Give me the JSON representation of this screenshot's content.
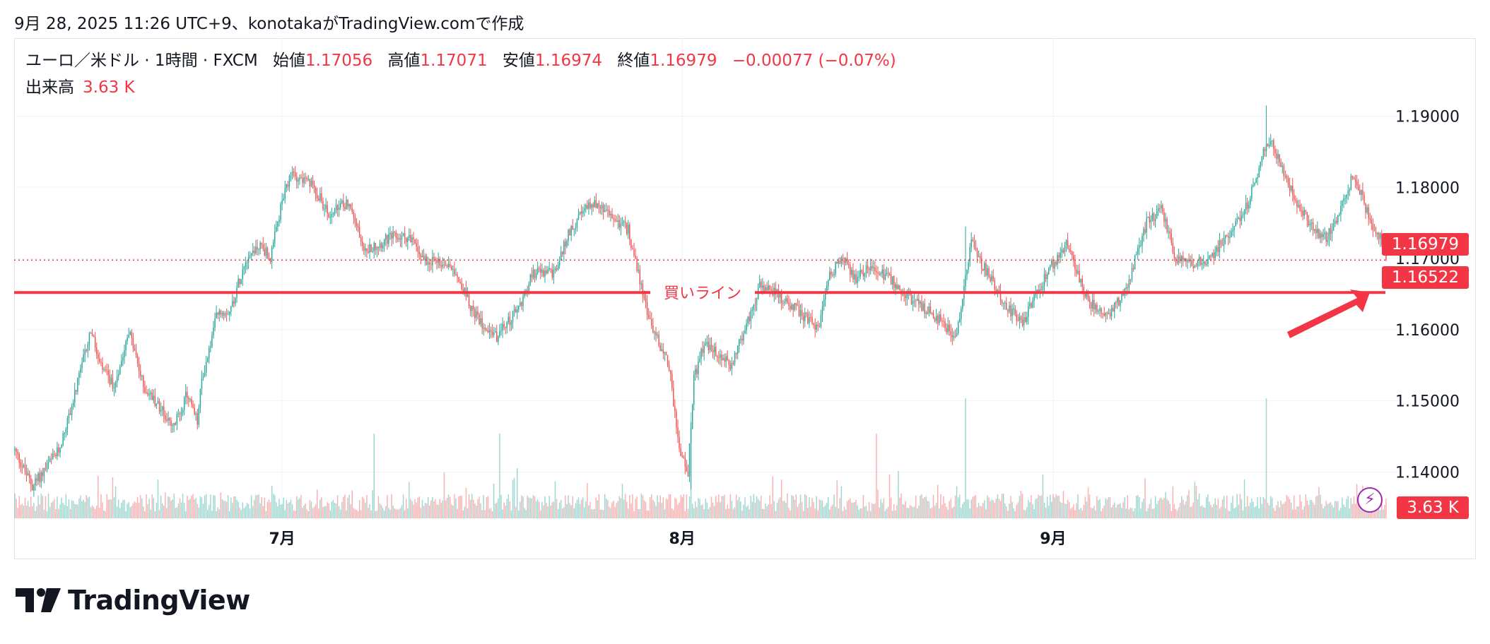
{
  "caption": "9月 28, 2025 11:26 UTC+9、konotakaがTradingView.comで作成",
  "legend": {
    "symbol": "ユーロ／米ドル · 1時間 · FXCM",
    "open_label": "始値",
    "open": "1.17056",
    "high_label": "高値",
    "high": "1.17071",
    "low_label": "安値",
    "low": "1.16974",
    "close_label": "終値",
    "close": "1.16979",
    "change": "−0.00077 (−0.07%)",
    "volume_label": "出来高",
    "volume": "3.63 K"
  },
  "tags": {
    "price": "1.16979",
    "line": "1.16522",
    "volume": "3.63 K"
  },
  "annotation": "買いライン",
  "logo": "TradingView",
  "colors": {
    "up": "#26a69a",
    "down": "#ef5350",
    "line": "#f23645",
    "arrow": "#f23645"
  },
  "chart_data": {
    "type": "candlestick",
    "symbol": "EUR/USD",
    "interval": "1時間",
    "y_ticks": [
      1.19,
      1.18,
      1.17,
      1.16,
      1.15,
      1.14
    ],
    "y_tick_labels": [
      "1.19000",
      "1.18000",
      "1.17000",
      "1.16000",
      "1.15000",
      "1.14000"
    ],
    "ylim": [
      1.1335,
      1.1965
    ],
    "x_ticks": [
      "7月",
      "8月",
      "9月"
    ],
    "x_tick_positions": [
      183,
      457,
      711
    ],
    "bar_count": 940,
    "last_price": 1.16979,
    "horizontal_line": {
      "label": "買いライン",
      "value": 1.16522
    },
    "price_path": [
      [
        0,
        1.143
      ],
      [
        12,
        1.138
      ],
      [
        30,
        1.143
      ],
      [
        40,
        1.15
      ],
      [
        52,
        1.16
      ],
      [
        58,
        1.155
      ],
      [
        68,
        1.152
      ],
      [
        78,
        1.16
      ],
      [
        88,
        1.152
      ],
      [
        100,
        1.149
      ],
      [
        108,
        1.146
      ],
      [
        118,
        1.151
      ],
      [
        125,
        1.147
      ],
      [
        128,
        1.153
      ],
      [
        133,
        1.157
      ],
      [
        138,
        1.162
      ],
      [
        148,
        1.163
      ],
      [
        158,
        1.17
      ],
      [
        168,
        1.172
      ],
      [
        175,
        1.17
      ],
      [
        183,
        1.178
      ],
      [
        190,
        1.182
      ],
      [
        205,
        1.18
      ],
      [
        215,
        1.176
      ],
      [
        228,
        1.178
      ],
      [
        240,
        1.171
      ],
      [
        258,
        1.173
      ],
      [
        270,
        1.173
      ],
      [
        280,
        1.17
      ],
      [
        300,
        1.169
      ],
      [
        315,
        1.162
      ],
      [
        330,
        1.159
      ],
      [
        345,
        1.163
      ],
      [
        355,
        1.168
      ],
      [
        370,
        1.168
      ],
      [
        380,
        1.174
      ],
      [
        395,
        1.178
      ],
      [
        408,
        1.176
      ],
      [
        420,
        1.174
      ],
      [
        428,
        1.167
      ],
      [
        435,
        1.161
      ],
      [
        448,
        1.155
      ],
      [
        455,
        1.143
      ],
      [
        461,
        1.14
      ],
      [
        465,
        1.153
      ],
      [
        472,
        1.158
      ],
      [
        490,
        1.155
      ],
      [
        500,
        1.16
      ],
      [
        510,
        1.166
      ],
      [
        522,
        1.165
      ],
      [
        540,
        1.162
      ],
      [
        550,
        1.16
      ],
      [
        558,
        1.168
      ],
      [
        567,
        1.17
      ],
      [
        575,
        1.167
      ],
      [
        585,
        1.169
      ],
      [
        600,
        1.167
      ],
      [
        615,
        1.164
      ],
      [
        630,
        1.162
      ],
      [
        645,
        1.159
      ],
      [
        650,
        1.166
      ],
      [
        655,
        1.173
      ],
      [
        660,
        1.17
      ],
      [
        680,
        1.163
      ],
      [
        690,
        1.161
      ],
      [
        700,
        1.165
      ],
      [
        710,
        1.169
      ],
      [
        720,
        1.172
      ],
      [
        735,
        1.164
      ],
      [
        748,
        1.162
      ],
      [
        760,
        1.165
      ],
      [
        775,
        1.175
      ],
      [
        785,
        1.177
      ],
      [
        795,
        1.17
      ],
      [
        805,
        1.169
      ],
      [
        818,
        1.17
      ],
      [
        830,
        1.173
      ],
      [
        845,
        1.178
      ],
      [
        855,
        1.185
      ],
      [
        860,
        1.187
      ],
      [
        867,
        1.183
      ],
      [
        878,
        1.178
      ],
      [
        890,
        1.174
      ],
      [
        898,
        1.173
      ],
      [
        905,
        1.175
      ],
      [
        915,
        1.181
      ],
      [
        922,
        1.179
      ],
      [
        930,
        1.174
      ],
      [
        938,
        1.172
      ],
      [
        945,
        1.169
      ],
      [
        950,
        1.166
      ],
      [
        956,
        1.165
      ],
      [
        962,
        1.167
      ],
      [
        968,
        1.168
      ],
      [
        975,
        1.169
      ]
    ],
    "spikes": [
      {
        "bar": 857,
        "high": 1.1915
      },
      {
        "bar": 651,
        "high": 1.1745
      },
      {
        "bar": 463,
        "low": 1.1375
      }
    ]
  }
}
